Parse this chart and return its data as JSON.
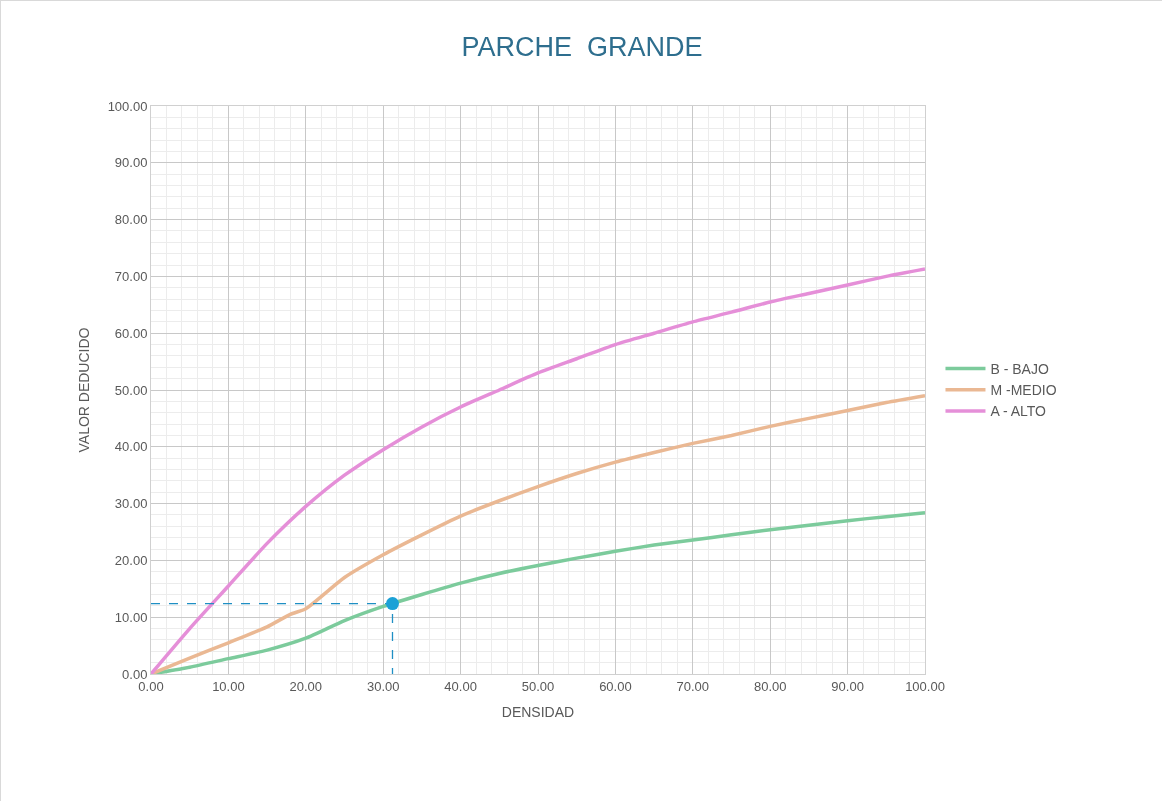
{
  "chart_data": {
    "type": "line",
    "title": "PARCHE  GRANDE",
    "xlabel": "DENSIDAD",
    "ylabel": "VALOR DEDUCIDO",
    "xlim": [
      0,
      100
    ],
    "ylim": [
      0,
      100
    ],
    "xticks": [
      {
        "value": 0,
        "label": "0.00"
      },
      {
        "value": 10,
        "label": "10.00"
      },
      {
        "value": 20,
        "label": "20.00"
      },
      {
        "value": 30,
        "label": "30.00"
      },
      {
        "value": 40,
        "label": "40.00"
      },
      {
        "value": 50,
        "label": "50.00"
      },
      {
        "value": 60,
        "label": "60.00"
      },
      {
        "value": 70,
        "label": "70.00"
      },
      {
        "value": 80,
        "label": "80.00"
      },
      {
        "value": 90,
        "label": "90.00"
      },
      {
        "value": 100,
        "label": "100.00"
      }
    ],
    "yticks": [
      {
        "value": 0,
        "label": "0.00"
      },
      {
        "value": 10,
        "label": "10.00"
      },
      {
        "value": 20,
        "label": "20.00"
      },
      {
        "value": 30,
        "label": "30.00"
      },
      {
        "value": 40,
        "label": "40.00"
      },
      {
        "value": 50,
        "label": "50.00"
      },
      {
        "value": 60,
        "label": "60.00"
      },
      {
        "value": 70,
        "label": "70.00"
      },
      {
        "value": 80,
        "label": "80.00"
      },
      {
        "value": 90,
        "label": "90.00"
      },
      {
        "value": 100,
        "label": "100.00"
      }
    ],
    "grid": true,
    "legend": "right",
    "marker": "none",
    "line_style": "solid",
    "series": [
      {
        "name": "B - BAJO",
        "color": "#7ccb9c",
        "x": [
          0,
          5,
          10,
          15,
          20,
          25,
          30,
          35,
          40,
          45,
          50,
          55,
          60,
          65,
          70,
          75,
          80,
          85,
          90,
          95,
          100
        ],
        "values": [
          0,
          1.2,
          2.7,
          4.2,
          6.3,
          9.4,
          11.9,
          14,
          16,
          17.7,
          19.1,
          20.4,
          21.6,
          22.7,
          23.6,
          24.5,
          25.4,
          26.2,
          27,
          27.7,
          28.4
        ]
      },
      {
        "name": "M -MEDIO",
        "color": "#eab893",
        "x": [
          0,
          5,
          10,
          15,
          18,
          20,
          25,
          30,
          35,
          40,
          45,
          50,
          55,
          60,
          65,
          70,
          75,
          80,
          85,
          90,
          95,
          100
        ],
        "values": [
          0,
          2.8,
          5.5,
          8.3,
          10.5,
          11.5,
          17,
          21,
          24.5,
          27.8,
          30.5,
          33,
          35.3,
          37.3,
          39,
          40.6,
          42,
          43.6,
          45,
          46.4,
          47.8,
          49
        ]
      },
      {
        "name": "A - ALTO",
        "color": "#e58fd8",
        "x": [
          0,
          5,
          10,
          15,
          20,
          25,
          30,
          35,
          40,
          45,
          50,
          55,
          60,
          65,
          70,
          75,
          80,
          85,
          90,
          95,
          100
        ],
        "values": [
          0,
          8,
          15.5,
          23,
          29.5,
          35,
          39.5,
          43.5,
          47,
          50,
          53,
          55.5,
          58,
          60,
          62,
          63.7,
          65.5,
          67,
          68.5,
          70,
          71.3
        ]
      },
      {
        "type": "line",
        "line_style": "dashed",
        "marker": "none",
        "color": "#1f8fc4",
        "x": [
          0,
          31.2,
          31.2
        ],
        "values": [
          12.4,
          12.4,
          0
        ]
      },
      {
        "type": "scatter",
        "marker": "circle",
        "color": "#1ba1d6",
        "x": [
          31.2
        ],
        "values": [
          12.4
        ]
      }
    ]
  }
}
